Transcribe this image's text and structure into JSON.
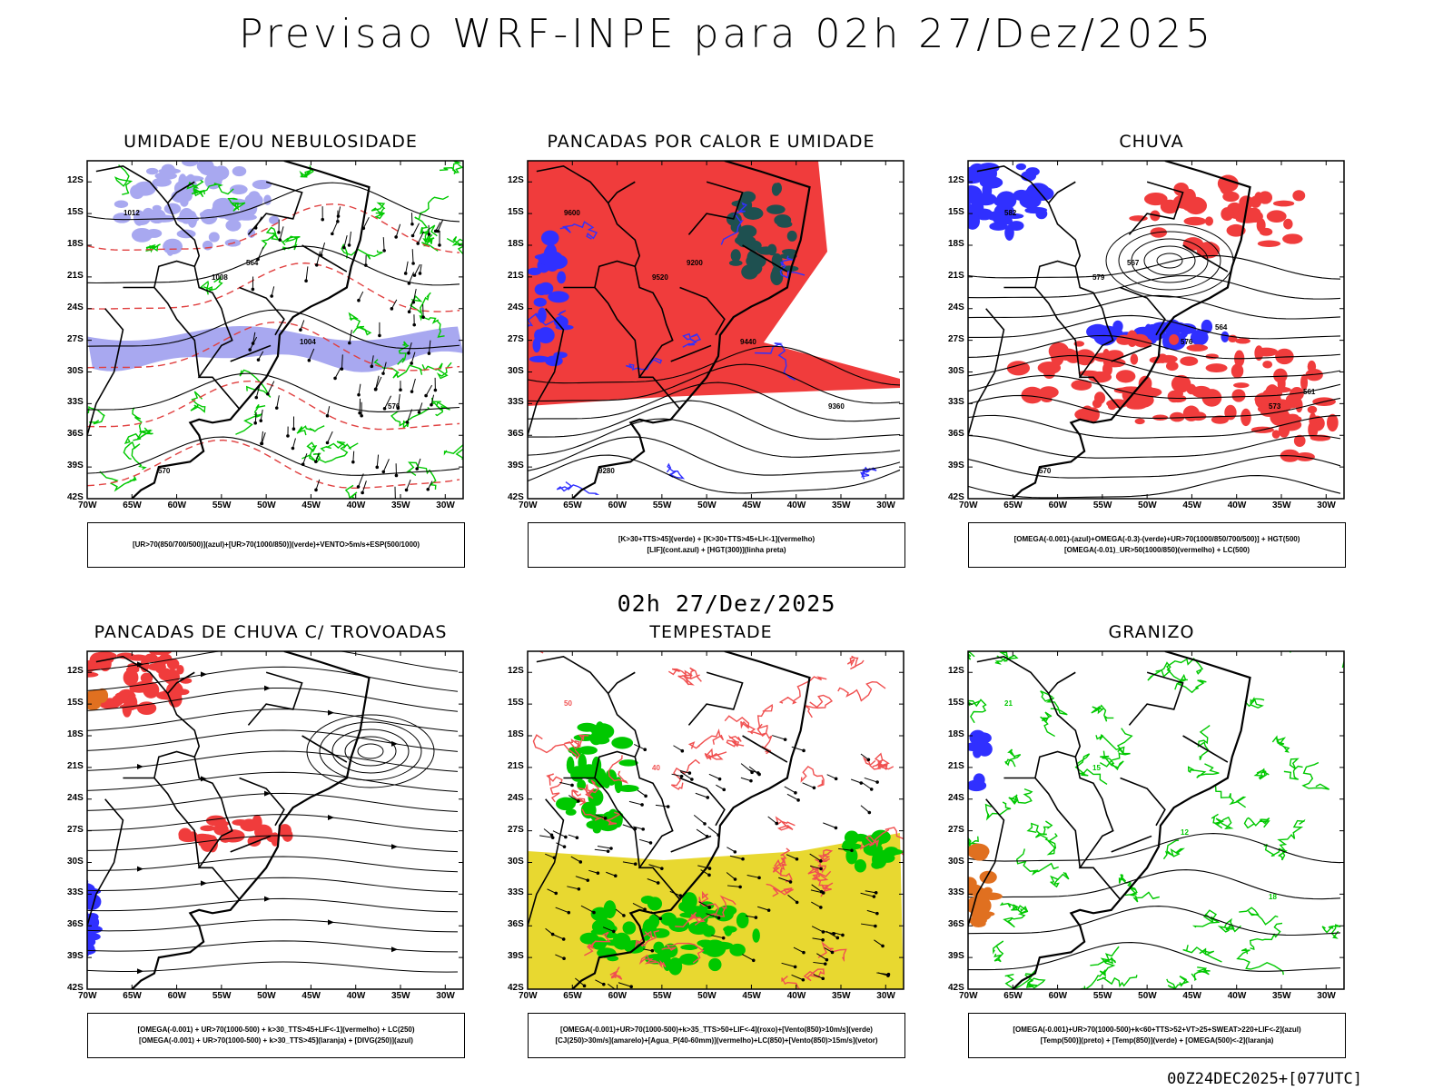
{
  "title": "Previsao WRF-INPE  para 02h 27/Dez/2025",
  "subtitle": "02h 27/Dez/2025",
  "footer": "00Z24DEC2025+[077UTC]",
  "axes": {
    "lat_ticks": [
      "12S",
      "15S",
      "18S",
      "21S",
      "24S",
      "27S",
      "30S",
      "33S",
      "36S",
      "39S",
      "42S"
    ],
    "lon_ticks": [
      "70W",
      "65W",
      "60W",
      "55W",
      "50W",
      "45W",
      "40W",
      "35W",
      "30W"
    ]
  },
  "colors": {
    "red": "#f03c3c",
    "blue": "#3030ff",
    "green": "#00c800",
    "lavender": "#a8a8f0",
    "teal": "#1e5050",
    "yellow": "#e8d830",
    "orange": "#e07020"
  },
  "panels": [
    {
      "title": "UMIDADE E/OU NEBULOSIDADE",
      "legend": [
        "[UR>70(850/700/500)](azul)+[UR>70(1000/850)](verde)+VENTO>5m/s+ESP(500/1000)"
      ],
      "labels": [
        "1012",
        "1008",
        "1004",
        "576",
        "570",
        "564"
      ]
    },
    {
      "title": "PANCADAS POR CALOR E UMIDADE",
      "legend": [
        "[K>30+TTS>45](verde) + [K>30+TTS>45+LI<-1](vermelho)",
        "[LIF](cont.azul) + [HGT(300)](linha preta)"
      ],
      "labels": [
        "9600",
        "9520",
        "9440",
        "9360",
        "9280",
        "9200"
      ]
    },
    {
      "title": "CHUVA",
      "legend": [
        "[OMEGA(-0.001)-(azul)+OMEGA(-0.3)-(verde)+UR>70(1000/850/700/500)] + HGT(500)",
        "[OMEGA(-0.01)_UR>50(1000/850)(vermelho) + LC(500)"
      ],
      "labels": [
        "582",
        "579",
        "576",
        "573",
        "570",
        "567",
        "564",
        "561"
      ]
    },
    {
      "title": "PANCADAS DE CHUVA C/ TROVOADAS",
      "legend": [
        "[OMEGA(-0.001) + UR>70(1000-500) + k>30_TTS>45+LIF<-1](vermelho) + LC(250)",
        "[OMEGA(-0.001) + UR>70(1000-500) + k>30_TTS>45](laranja) + [DIVG(250)](azul)"
      ],
      "labels": []
    },
    {
      "title": "TEMPESTADE",
      "legend": [
        "[OMEGA(-0.001)+UR>70(1000-500)+k>35_TTS>50+LIF<-4](roxo)+[Vento(850)>10m/s](verde)",
        "[CJ(250)>30m/s](amarelo)+[Agua_P(40-60mm)](vermelho)+LC(850)+[Vento(850)>15m/s](vetor)"
      ],
      "labels": [
        "50",
        "40"
      ]
    },
    {
      "title": "GRANIZO",
      "legend": [
        "[OMEGA(-0.001)+UR>70(1000-500)+k<60+TTS>52+VT>25+SWEAT>220+LIF<-2](azul)",
        "[Temp(500)](preto) + [Temp(850)](verde) + [OMEGA(500)<-2](laranja)"
      ],
      "labels": [
        "21",
        "15",
        "12",
        "18"
      ]
    }
  ]
}
